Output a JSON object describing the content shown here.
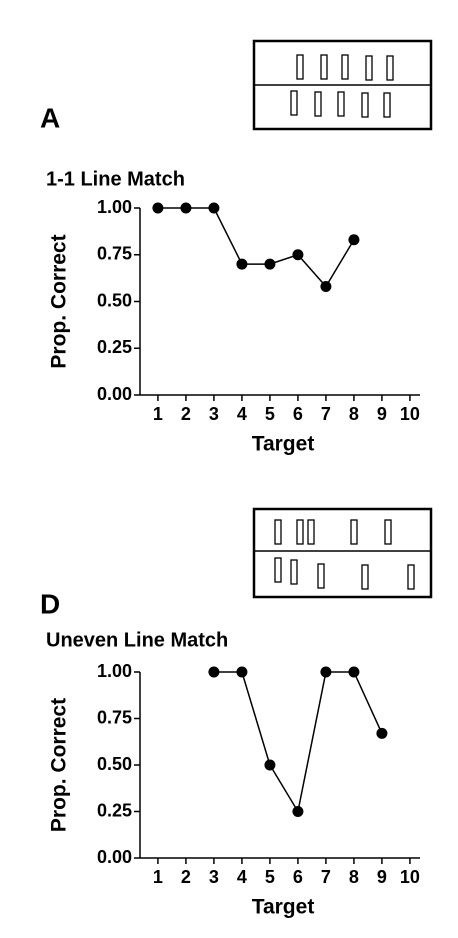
{
  "chart_data": [
    {
      "type": "line",
      "panel": "A",
      "title": "1-1 Line Match",
      "xlabel": "Target",
      "ylabel": "Prop. Correct",
      "x": [
        1,
        2,
        3,
        4,
        5,
        6,
        7,
        8,
        9,
        10
      ],
      "xlim": [
        0.36,
        10.36
      ],
      "xticks": [
        1,
        2,
        3,
        4,
        5,
        6,
        7,
        8,
        9,
        10
      ],
      "ylim": [
        0,
        1
      ],
      "yticks": [
        {
          "value": 0,
          "label": "0.00"
        },
        {
          "value": 0.25,
          "label": "0.25"
        },
        {
          "value": 0.5,
          "label": "0.50"
        },
        {
          "value": 0.75,
          "label": "0.75"
        },
        {
          "value": 1,
          "label": "1.00"
        }
      ],
      "values": [
        1,
        1,
        1,
        0.7,
        0.7,
        0.75,
        0.58,
        0.83,
        null,
        null
      ],
      "color": "#000000"
    },
    {
      "type": "line",
      "panel": "D",
      "title": "Uneven Line Match",
      "xlabel": "Target",
      "ylabel": "Prop. Correct",
      "x": [
        1,
        2,
        3,
        4,
        5,
        6,
        7,
        8,
        9,
        10
      ],
      "xlim": [
        0.36,
        10.36
      ],
      "xticks": [
        1,
        2,
        3,
        4,
        5,
        6,
        7,
        8,
        9,
        10
      ],
      "ylim": [
        0,
        1
      ],
      "yticks": [
        {
          "value": 0,
          "label": "0.00"
        },
        {
          "value": 0.25,
          "label": "0.25"
        },
        {
          "value": 0.5,
          "label": "0.50"
        },
        {
          "value": 0.75,
          "label": "0.75"
        },
        {
          "value": 1,
          "label": "1.00"
        }
      ],
      "values": [
        null,
        null,
        1,
        1,
        0.5,
        0.25,
        1,
        1,
        0.67,
        null
      ],
      "color": "#000000"
    }
  ]
}
